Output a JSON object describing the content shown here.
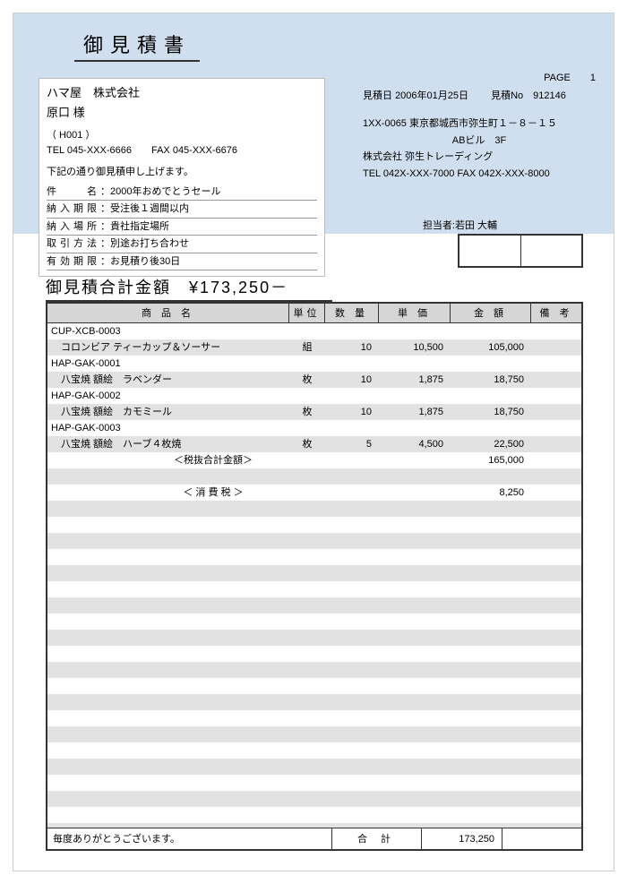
{
  "title": "御見積書",
  "page_label": "PAGE",
  "page_no": "1",
  "estimate_date_label": "見積日",
  "estimate_date": "2006年01月25日",
  "estimate_no_label": "見積No",
  "estimate_no": "912146",
  "client": {
    "name": "ハマ屋　株式会社",
    "attn": "原口 様",
    "code": "（ H001 ）",
    "tel": "TEL 045-XXX-6666　　FAX 045-XXX-6676"
  },
  "intro": "下記の通り御見積申し上げます。",
  "meta": {
    "subject_label": "件　　名",
    "subject": "：2000年おめでとうセール",
    "due_label": "納入期限",
    "due": "：受注後１週間以内",
    "place_label": "納入場所",
    "place": "：貴社指定場所",
    "deal_label": "取引方法",
    "deal": "：別途お打ち合わせ",
    "valid_label": "有効期限",
    "valid": "：お見積り後30日"
  },
  "sender": {
    "zip": "1XX-0065 東京都城西市弥生町１－８－１５",
    "bldg": "ABビル　3F",
    "company": "株式会社 弥生トレーディング",
    "tel": "TEL 042X-XXX-7000 FAX 042X-XXX-8000"
  },
  "tantou_label": "担当者:",
  "tantou": "若田 大輔",
  "grand_total_label": "御見積合計金額",
  "grand_total": "¥173,250－",
  "columns": {
    "name": "商 品 名",
    "unit": "単位",
    "qty": "数 量",
    "price": "単 価",
    "amount": "金 額",
    "note": "備 考"
  },
  "items": [
    {
      "code": "CUP-XCB-0003",
      "name": "コロンビア ティーカップ＆ソーサー",
      "unit": "組",
      "qty": "10",
      "price": "10,500",
      "amount": "105,000"
    },
    {
      "code": "HAP-GAK-0001",
      "name": "八宝焼 額絵　ラベンダー",
      "unit": "枚",
      "qty": "10",
      "price": "1,875",
      "amount": "18,750"
    },
    {
      "code": "HAP-GAK-0002",
      "name": "八宝焼 額絵　カモミール",
      "unit": "枚",
      "qty": "10",
      "price": "1,875",
      "amount": "18,750"
    },
    {
      "code": "HAP-GAK-0003",
      "name": "八宝焼 額絵　ハーブ４枚焼",
      "unit": "枚",
      "qty": "5",
      "price": "4,500",
      "amount": "22,500"
    }
  ],
  "subtotal_label": "＜税抜合計金額＞",
  "subtotal": "165,000",
  "tax_label": "＜ 消 費 税 ＞",
  "tax": "8,250",
  "footer_msg": "毎度ありがとうございます。",
  "footer_total_label": "合 計",
  "footer_total": "173,250"
}
